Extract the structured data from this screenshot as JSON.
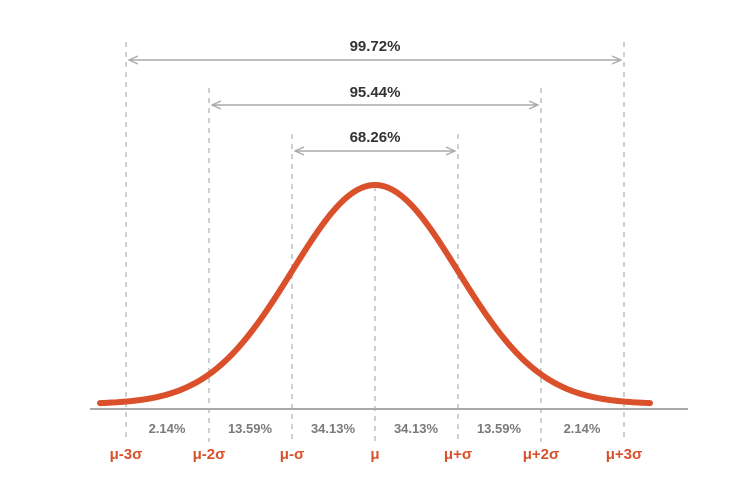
{
  "chart_data": {
    "type": "normal-distribution",
    "curve_color": "#d9502b",
    "ranges": [
      {
        "label": "99.72%",
        "from": -3,
        "to": 3
      },
      {
        "label": "95.44%",
        "from": -2,
        "to": 2
      },
      {
        "label": "68.26%",
        "from": -1,
        "to": 1
      }
    ],
    "segments": [
      "2.14%",
      "13.59%",
      "34.13%",
      "34.13%",
      "13.59%",
      "2.14%"
    ],
    "sigma_labels": [
      "μ-3σ",
      "μ-2σ",
      "μ-σ",
      "μ",
      "μ+σ",
      "μ+2σ",
      "μ+3σ"
    ]
  }
}
